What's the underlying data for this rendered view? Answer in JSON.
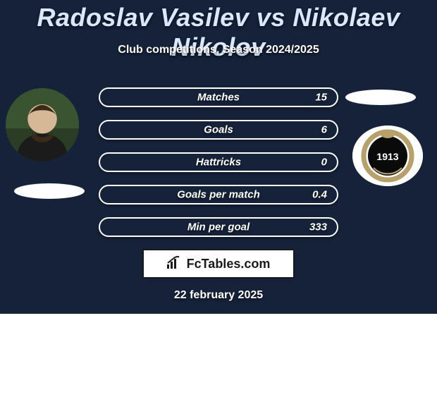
{
  "colors": {
    "bg_top": "#16223a",
    "bg_bottom": "#ffffff",
    "title": "#d9e7ff",
    "subtitle": "#ffffff",
    "stat_label": "#ffffff",
    "stat_value": "#ffffff",
    "pill_fill": "#16223a",
    "pill_border": "#ffffff",
    "brand_border": "#1a1a1a",
    "date": "#ffffff",
    "avatar_bg": "#2e4a2e",
    "crest_bg": "#ffffff",
    "crest_ring": "#b8a06a",
    "crest_inner": "#0a0a0a",
    "crest_text": "#ffffff"
  },
  "layout": {
    "bg_split_top_h": 445
  },
  "title": "Radoslav Vasilev vs Nikolaev Nikolov",
  "subtitle": "Club competitions, Season 2024/2025",
  "stats": [
    {
      "label": "Matches",
      "value": "15"
    },
    {
      "label": "Goals",
      "value": "6"
    },
    {
      "label": "Hattricks",
      "value": "0"
    },
    {
      "label": "Goals per match",
      "value": "0.4"
    },
    {
      "label": "Min per goal",
      "value": "333"
    }
  ],
  "brand": {
    "icon": "chart-bars-icon",
    "text": "FcTables.com"
  },
  "date": "22 february 2025",
  "crest": {
    "year": "1913"
  }
}
